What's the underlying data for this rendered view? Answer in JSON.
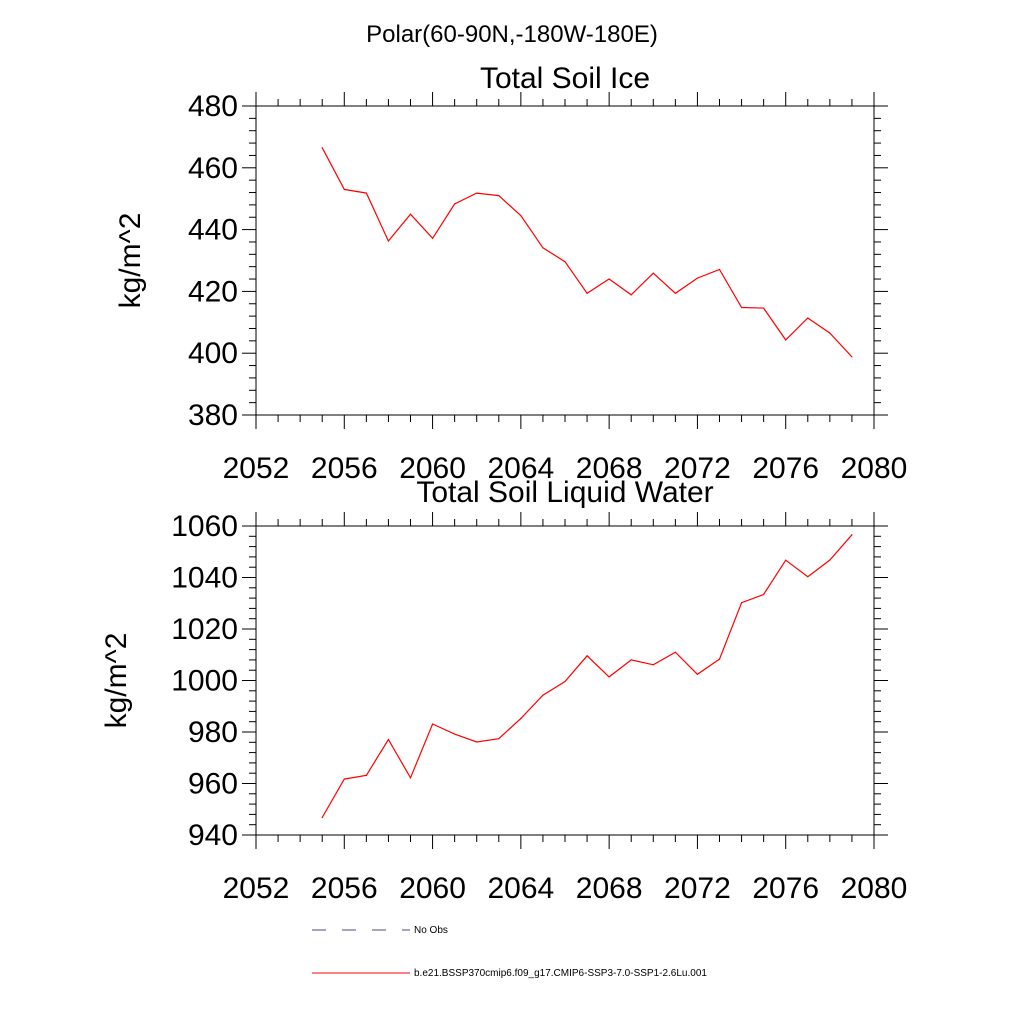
{
  "header": {
    "title": "Polar(60-90N,-180W-180E)"
  },
  "colors": {
    "series": "#ff0000",
    "obs": "#4a4a8a",
    "axis": "#000000"
  },
  "chart_data": [
    {
      "type": "line",
      "title": "Total Soil Ice",
      "xlabel": "",
      "ylabel": "kg/m^2",
      "xlim": [
        2052,
        2080
      ],
      "ylim": [
        380,
        480
      ],
      "xticks": [
        2052,
        2056,
        2060,
        2064,
        2068,
        2072,
        2076,
        2080
      ],
      "yticks": [
        380,
        400,
        420,
        440,
        460,
        480
      ],
      "grid": false,
      "series": [
        {
          "x": [
            2055,
            2056,
            2057,
            2058,
            2059,
            2060,
            2061,
            2062,
            2063,
            2064,
            2065,
            2066,
            2067,
            2068,
            2069,
            2070,
            2071,
            2072,
            2073,
            2074,
            2075,
            2076,
            2077,
            2078,
            2079
          ],
          "values": [
            466.5,
            453,
            451.8,
            436.3,
            445,
            437.2,
            448.3,
            451.8,
            451,
            444.5,
            434.1,
            429.6,
            419.4,
            424,
            418.9,
            425.9,
            419.4,
            424.3,
            427.1,
            414.8,
            414.6,
            404.3,
            411.4,
            406.5,
            398.8
          ]
        }
      ]
    },
    {
      "type": "line",
      "title": "Total Soil Liquid Water",
      "xlabel": "",
      "ylabel": "kg/m^2",
      "xlim": [
        2052,
        2080
      ],
      "ylim": [
        940,
        1060
      ],
      "xticks": [
        2052,
        2056,
        2060,
        2064,
        2068,
        2072,
        2076,
        2080
      ],
      "yticks": [
        940,
        960,
        980,
        1000,
        1020,
        1040,
        1060
      ],
      "grid": false,
      "series": [
        {
          "x": [
            2055,
            2056,
            2057,
            2058,
            2059,
            2060,
            2061,
            2062,
            2063,
            2064,
            2065,
            2066,
            2067,
            2068,
            2069,
            2070,
            2071,
            2072,
            2073,
            2074,
            2075,
            2076,
            2077,
            2078,
            2079
          ],
          "values": [
            946.8,
            961.7,
            963.2,
            977.1,
            962.2,
            983.1,
            979.2,
            976.1,
            977.4,
            985.3,
            994.3,
            999.6,
            1009.6,
            1001.4,
            1008,
            1006.1,
            1011,
            1002.4,
            1008.3,
            1030.2,
            1033.4,
            1046.7,
            1040.3,
            1046.8,
            1056.6
          ]
        }
      ]
    }
  ],
  "legend": {
    "items": [
      {
        "label": "No Obs",
        "style": "dashed"
      },
      {
        "label": "b.e21.BSSP370cmip6.f09_g17.CMIP6-SSP3-7.0-SSP1-2.6Lu.001",
        "style": "solid"
      }
    ]
  }
}
